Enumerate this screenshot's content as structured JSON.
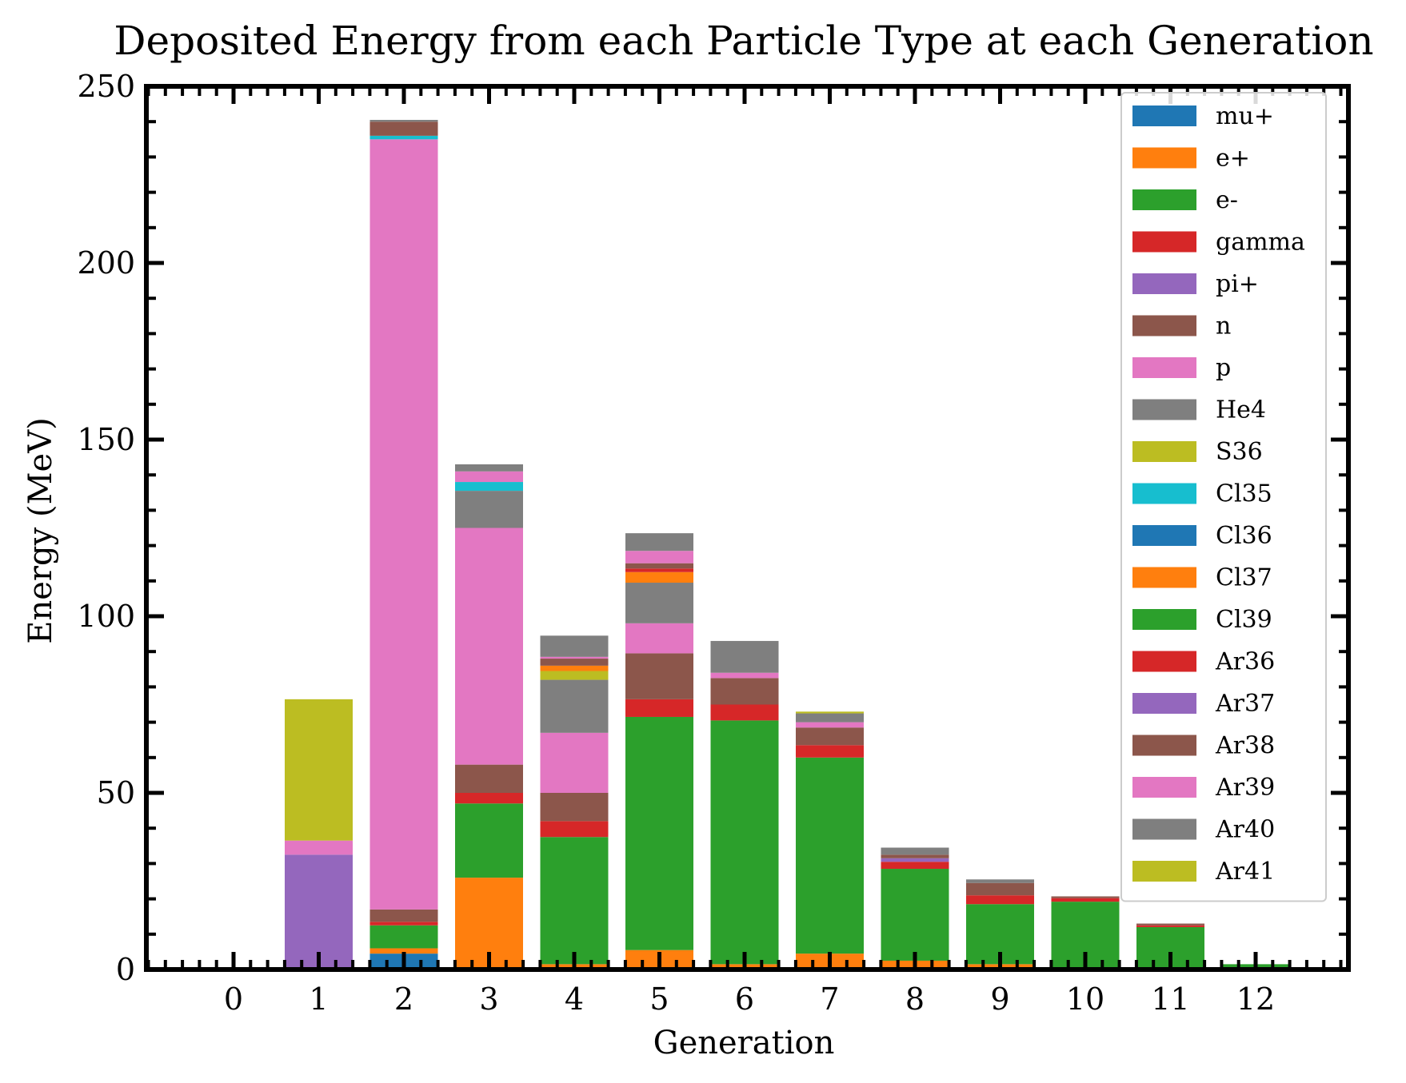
{
  "chart_data": {
    "type": "bar",
    "stacked": true,
    "title": "Deposited Energy from each Particle Type at each Generation",
    "xlabel": "Generation",
    "ylabel": "Energy (MeV)",
    "categories": [
      "0",
      "1",
      "2",
      "3",
      "4",
      "5",
      "6",
      "7",
      "8",
      "9",
      "10",
      "11",
      "12"
    ],
    "ylim": [
      0,
      250
    ],
    "yticks": [
      0,
      50,
      100,
      150,
      200,
      250
    ],
    "grid": false,
    "legend_position": "top-right",
    "series": [
      {
        "name": "mu+",
        "color": "#1f77b4",
        "values": [
          0,
          0,
          4.5,
          0,
          0,
          0,
          0,
          0,
          0,
          0,
          0,
          0,
          0
        ]
      },
      {
        "name": "e+",
        "color": "#ff7f0e",
        "values": [
          0,
          0,
          1.5,
          26,
          1.5,
          5.5,
          1.5,
          4.5,
          2.5,
          1.5,
          0.2,
          0,
          0
        ]
      },
      {
        "name": "e-",
        "color": "#2ca02c",
        "values": [
          0,
          0,
          6.5,
          21,
          36,
          66,
          69,
          55.5,
          26,
          17,
          19,
          12,
          1.5
        ]
      },
      {
        "name": "gamma",
        "color": "#d62728",
        "values": [
          0,
          0,
          1,
          3,
          4.5,
          5,
          4.5,
          3.5,
          2,
          2.5,
          1,
          0.5,
          0
        ]
      },
      {
        "name": "pi+",
        "color": "#9467bd",
        "values": [
          0,
          32.5,
          0,
          0,
          0,
          0,
          0,
          0,
          1,
          0,
          0,
          0,
          0
        ]
      },
      {
        "name": "n",
        "color": "#8c564b",
        "values": [
          0,
          0,
          3.5,
          8,
          8,
          13,
          7.5,
          5,
          1,
          3.5,
          0.5,
          0.5,
          0
        ]
      },
      {
        "name": "p",
        "color": "#e377c2",
        "values": [
          0,
          4,
          218,
          67,
          17,
          8.5,
          1.5,
          1.5,
          0,
          0,
          0,
          0,
          0
        ]
      },
      {
        "name": "He4",
        "color": "#7f7f7f",
        "values": [
          0,
          0,
          0,
          10.5,
          15,
          11.5,
          0,
          2.5,
          2,
          1,
          0,
          0,
          0
        ]
      },
      {
        "name": "S36",
        "color": "#bcbd22",
        "values": [
          0,
          0,
          0,
          0,
          2.5,
          0,
          0,
          0.5,
          0,
          0,
          0,
          0,
          0
        ]
      },
      {
        "name": "Cl35",
        "color": "#17becf",
        "values": [
          0,
          0,
          1,
          2.5,
          0,
          0,
          0,
          0,
          0,
          0,
          0,
          0,
          0
        ]
      },
      {
        "name": "Cl36",
        "color": "#1f77b4",
        "values": [
          0,
          0,
          0,
          0,
          0,
          0,
          0,
          0,
          0,
          0,
          0,
          0,
          0
        ]
      },
      {
        "name": "Cl37",
        "color": "#ff7f0e",
        "values": [
          0,
          0,
          0,
          0,
          1.5,
          3,
          0,
          0,
          0,
          0,
          0,
          0,
          0
        ]
      },
      {
        "name": "Cl39",
        "color": "#2ca02c",
        "values": [
          0,
          0,
          0,
          0,
          0,
          0,
          0,
          0,
          0,
          0,
          0,
          0,
          0
        ]
      },
      {
        "name": "Ar36",
        "color": "#d62728",
        "values": [
          0,
          0,
          0,
          0,
          0,
          1,
          0,
          0,
          0,
          0,
          0,
          0,
          0
        ]
      },
      {
        "name": "Ar37",
        "color": "#9467bd",
        "values": [
          0,
          0,
          0,
          0,
          0,
          0,
          0,
          0,
          0,
          0,
          0,
          0,
          0
        ]
      },
      {
        "name": "Ar38",
        "color": "#8c564b",
        "values": [
          0,
          0,
          4,
          0,
          2,
          1.5,
          0,
          0,
          0,
          0,
          0,
          0,
          0
        ]
      },
      {
        "name": "Ar39",
        "color": "#e377c2",
        "values": [
          0,
          0,
          0,
          3,
          0.5,
          3.5,
          0,
          0,
          0,
          0,
          0,
          0,
          0
        ]
      },
      {
        "name": "Ar40",
        "color": "#7f7f7f",
        "values": [
          0,
          0,
          0.5,
          2,
          6,
          5,
          9,
          0,
          0,
          0,
          0,
          0,
          0
        ]
      },
      {
        "name": "Ar41",
        "color": "#bcbd22",
        "values": [
          0,
          40,
          0,
          0,
          0,
          0,
          0,
          0,
          0,
          0,
          0,
          0,
          0
        ]
      }
    ]
  }
}
